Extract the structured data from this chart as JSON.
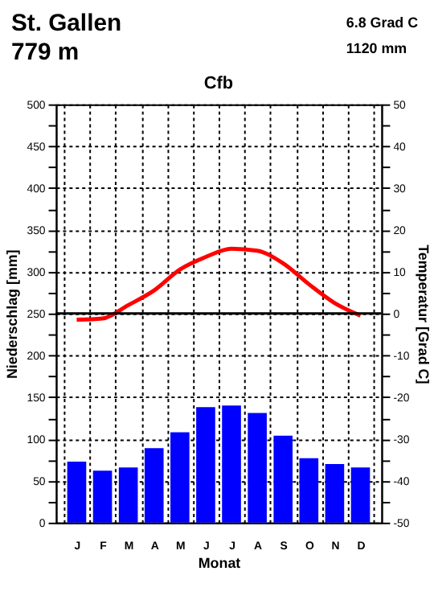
{
  "chart_data": {
    "type": "bar",
    "title": "Cfb",
    "annotations": [
      "St. Gallen",
      "779 m",
      "6.8 Grad C",
      "1120 mm"
    ],
    "categories": [
      "J",
      "F",
      "M",
      "A",
      "M",
      "J",
      "J",
      "A",
      "S",
      "O",
      "N",
      "D"
    ],
    "xlabel": "Monat",
    "ylabel": "Niederschlag [mm]",
    "y2label": "Temperatur [Grad C]",
    "ylim": [
      0,
      500
    ],
    "yticks": [
      0,
      {
        "value": 25,
        "label": null
      },
      50,
      {
        "value": 75,
        "label": null
      },
      100,
      {
        "value": 125,
        "label": null
      },
      150,
      {
        "value": 175,
        "label": null
      },
      200,
      {
        "value": 225,
        "label": null
      },
      250,
      {
        "value": 275,
        "label": null
      },
      300,
      {
        "value": 325,
        "label": null
      },
      350,
      {
        "value": 375,
        "label": null
      },
      400,
      {
        "value": 425,
        "label": null
      },
      450,
      {
        "value": 475,
        "label": null
      },
      500
    ],
    "y2lim": [
      -50,
      50
    ],
    "y2ticks": [
      -50,
      {
        "value": -45,
        "label": null
      },
      -40,
      {
        "value": -35,
        "label": null
      },
      -30,
      {
        "value": -25,
        "label": null
      },
      -20,
      {
        "value": -15,
        "label": null
      },
      -10,
      {
        "value": -5,
        "label": null
      },
      0,
      {
        "value": 5,
        "label": null
      },
      10,
      {
        "value": 15,
        "label": null
      },
      20,
      {
        "value": 25,
        "label": null
      },
      30,
      {
        "value": 35,
        "label": null
      },
      40,
      {
        "value": 45,
        "label": null
      },
      50
    ],
    "series": [
      {
        "color": "#0000ff",
        "values": [
          73,
          62,
          66,
          89,
          108,
          138,
          140,
          131,
          104,
          77,
          70,
          66
        ]
      },
      {
        "type": "line",
        "axis": "y2",
        "color": "#ff0000",
        "values": [
          -1.5,
          -1.2,
          2,
          5.5,
          10.5,
          13.5,
          15.5,
          15,
          12,
          7,
          2.5,
          -0.5
        ]
      }
    ],
    "ref_lines": [
      {
        "axis": "y2",
        "value": 0,
        "color": "#000000"
      }
    ],
    "grid": true
  }
}
